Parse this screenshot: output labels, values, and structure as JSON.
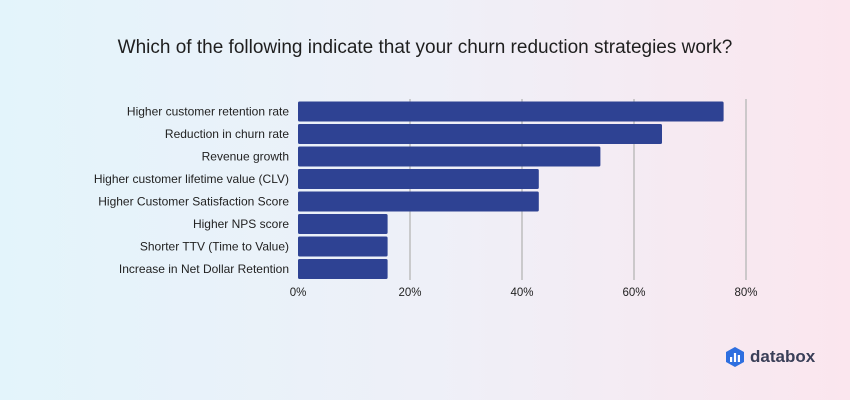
{
  "chart_data": {
    "type": "bar",
    "orientation": "horizontal",
    "title": "Which of the following indicate that your churn reduction strategies work?",
    "categories": [
      "Higher customer retention rate",
      "Reduction in churn rate",
      "Revenue growth",
      "Higher customer lifetime value (CLV)",
      "Higher Customer Satisfaction Score",
      "Higher NPS score",
      "Shorter TTV (Time to Value)",
      "Increase in Net Dollar Retention"
    ],
    "values": [
      76,
      65,
      54,
      43,
      43,
      16,
      16,
      16
    ],
    "xlim": [
      0,
      80
    ],
    "xticks": [
      "0%",
      "20%",
      "40%",
      "60%",
      "80%"
    ],
    "grid": true,
    "bar_color": "#2e4293",
    "grid_color": "#bdbdbd"
  },
  "brand": {
    "name": "databox",
    "color": "#2e6fe0"
  }
}
